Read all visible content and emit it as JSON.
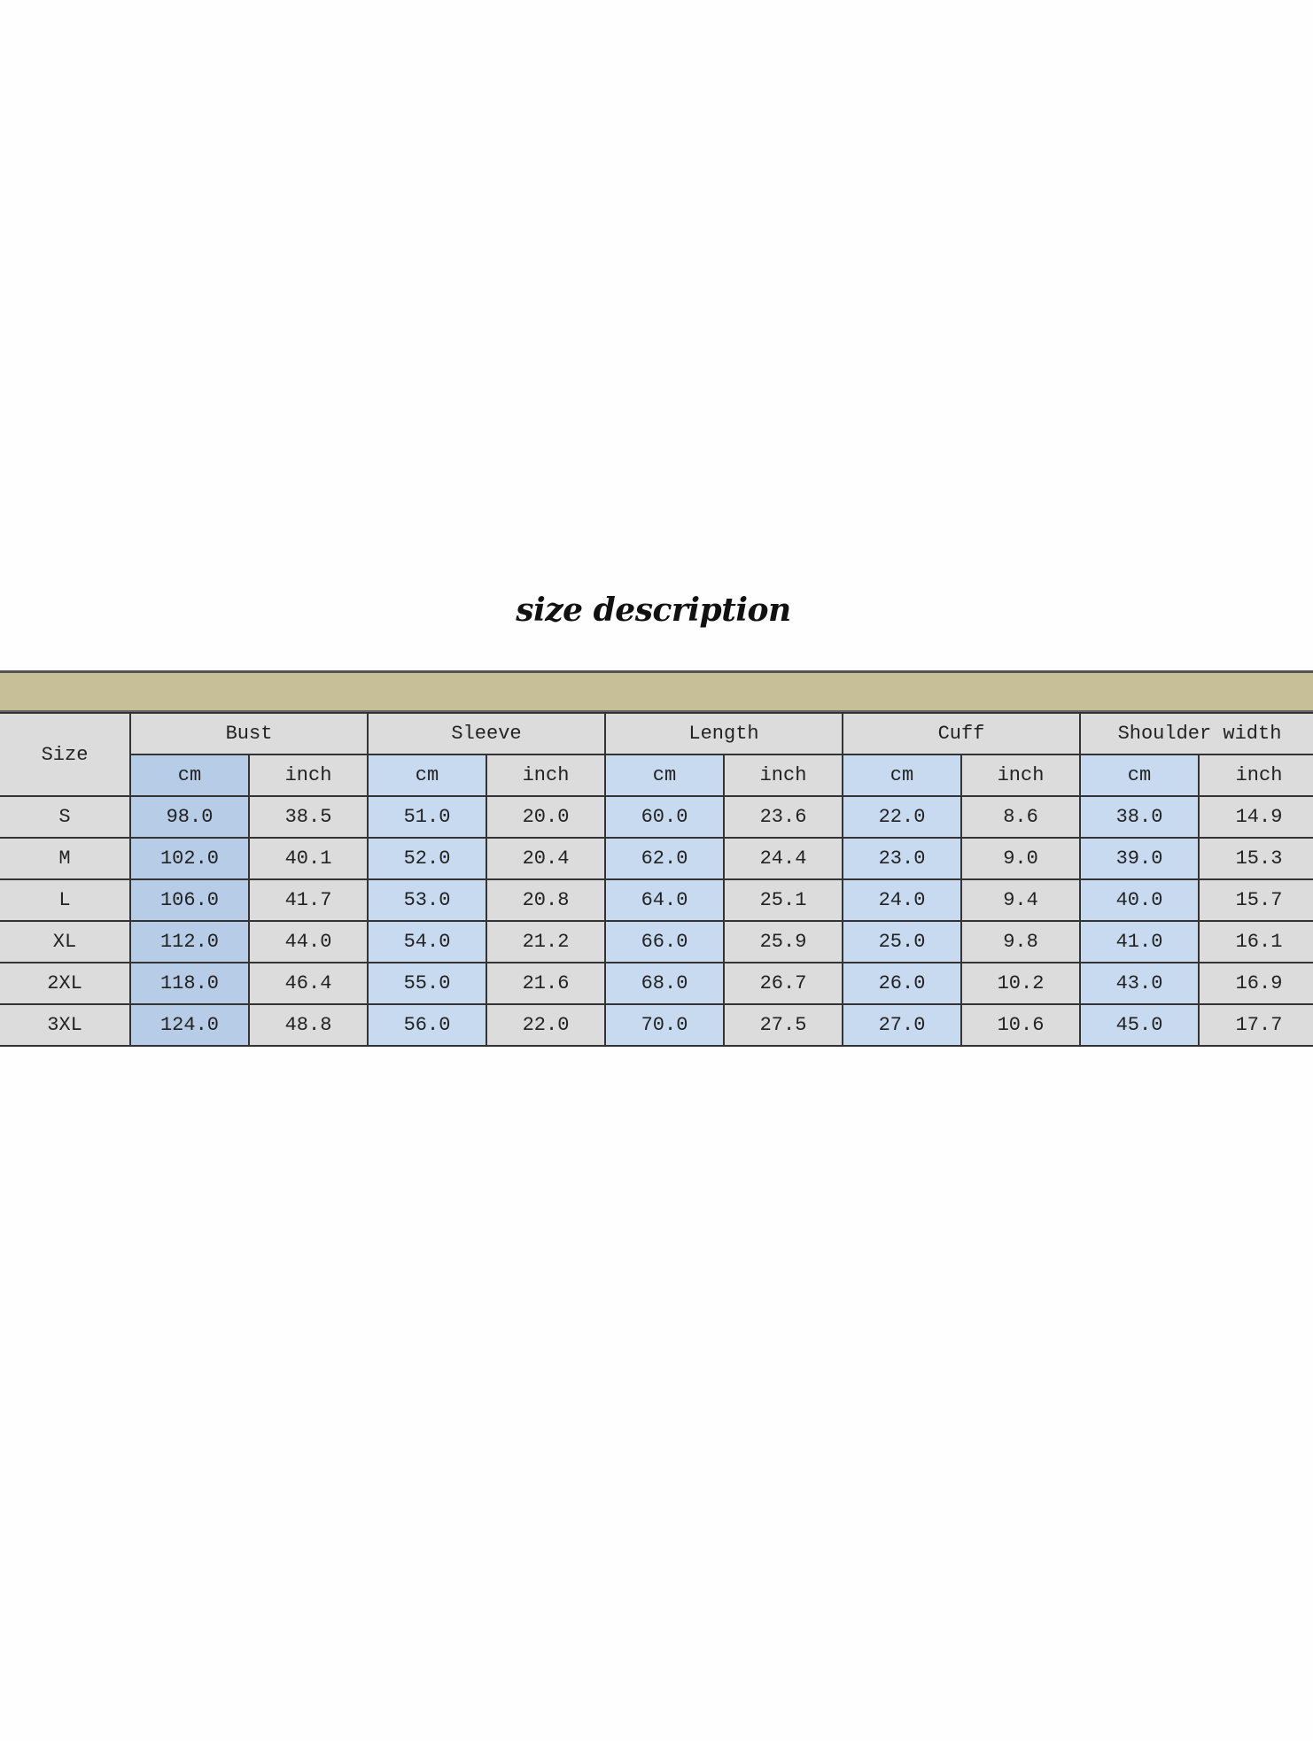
{
  "title": "size description",
  "table": {
    "size_header": "Size",
    "groups": [
      "Bust",
      "Sleeve",
      "Length",
      "Cuff",
      "Shoulder width"
    ],
    "units": [
      "cm",
      "inch"
    ],
    "rows": [
      [
        "S",
        "98.0",
        "38.5",
        "51.0",
        "20.0",
        "60.0",
        "23.6",
        "22.0",
        "8.6",
        "38.0",
        "14.9"
      ],
      [
        "M",
        "102.0",
        "40.1",
        "52.0",
        "20.4",
        "62.0",
        "24.4",
        "23.0",
        "9.0",
        "39.0",
        "15.3"
      ],
      [
        "L",
        "106.0",
        "41.7",
        "53.0",
        "20.8",
        "64.0",
        "25.1",
        "24.0",
        "9.4",
        "40.0",
        "15.7"
      ],
      [
        "XL",
        "112.0",
        "44.0",
        "54.0",
        "21.2",
        "66.0",
        "25.9",
        "25.0",
        "9.8",
        "41.0",
        "16.1"
      ],
      [
        "2XL",
        "118.0",
        "46.4",
        "55.0",
        "21.6",
        "68.0",
        "26.7",
        "26.0",
        "10.2",
        "43.0",
        "16.9"
      ],
      [
        "3XL",
        "124.0",
        "48.8",
        "56.0",
        "22.0",
        "70.0",
        "27.5",
        "27.0",
        "10.6",
        "45.0",
        "17.7"
      ]
    ]
  },
  "colors": {
    "band": "#c6bf98",
    "header": "#dcdcdc",
    "cm_column": "#c7daf0"
  }
}
